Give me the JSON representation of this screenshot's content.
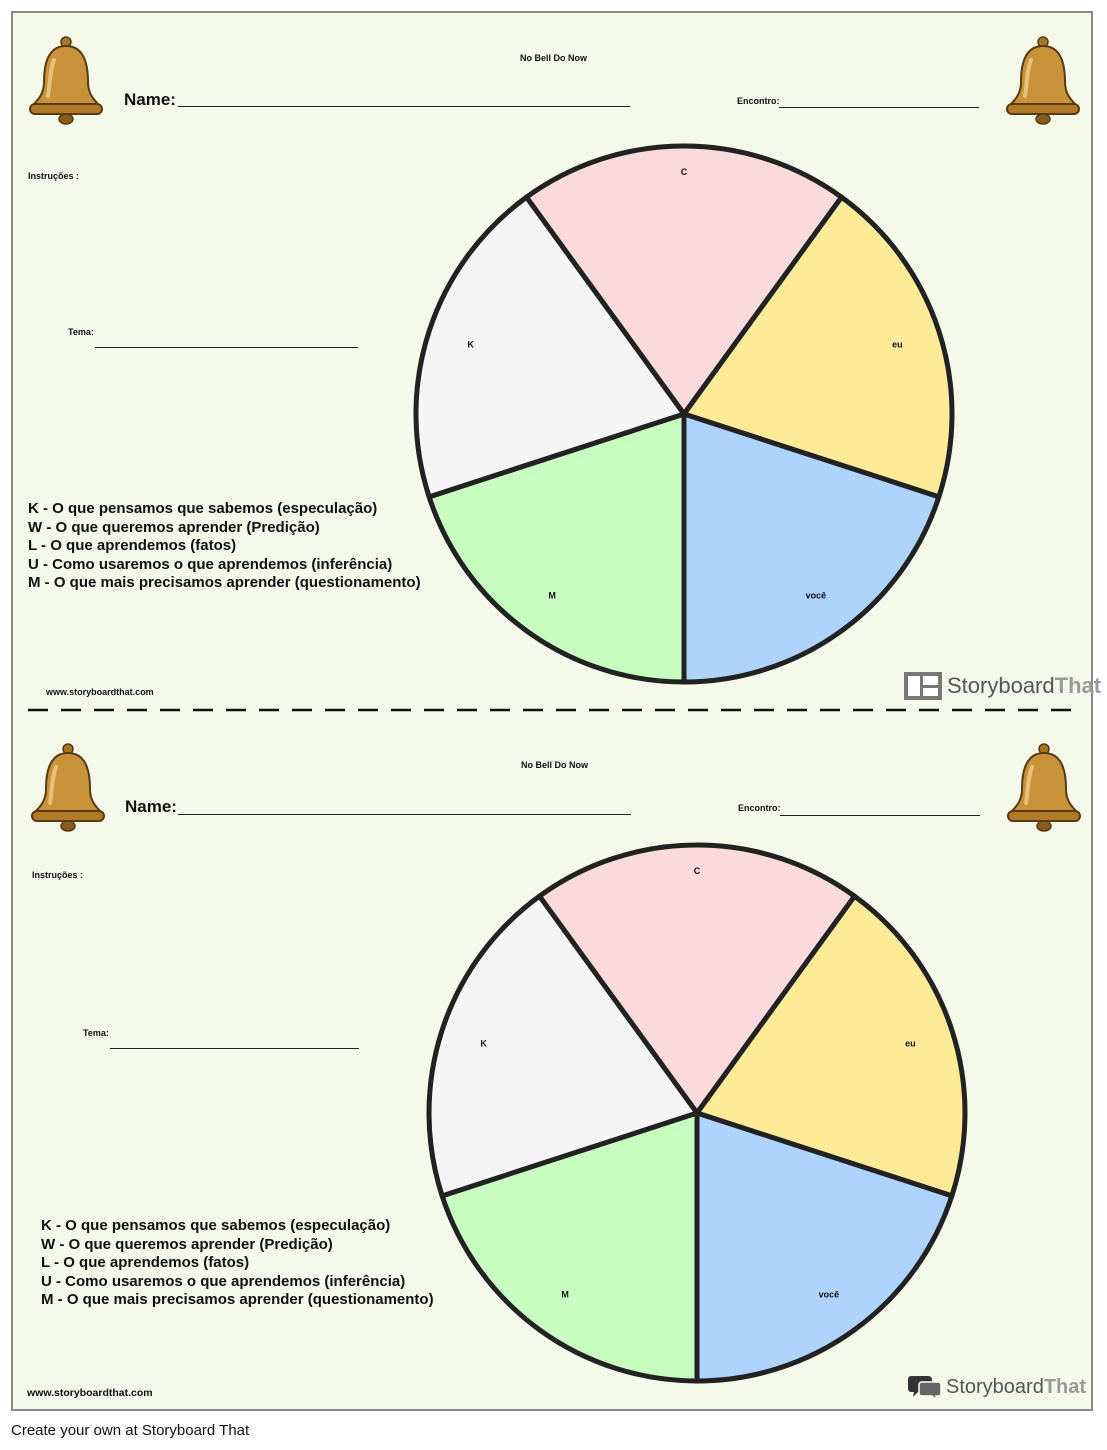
{
  "worksheet": {
    "title": "No Bell Do Now",
    "name_label": "Name:",
    "date_label": "Encontro:",
    "instructions_label": "Instruções :",
    "topic_label": "Tema:",
    "legend": [
      "K - O que pensamos que sabemos (especulação)",
      "W - O que queremos aprender (Predição)",
      "L - O que aprendemos (fatos)",
      "U - Como usaremos o que aprendemos (inferência)",
      "M - O que mais precisamos aprender (questionamento)"
    ],
    "wheel": [
      {
        "label": "C",
        "color": "#fadadb"
      },
      {
        "label": "eu",
        "color": "#fdeb98"
      },
      {
        "label": "você",
        "color": "#aed3fd"
      },
      {
        "label": "M",
        "color": "#c6ffbf"
      },
      {
        "label": "K",
        "color": "#f5f5f5"
      }
    ],
    "url": "www.storyboardthat.com"
  },
  "logo": {
    "word1": "Storyboard",
    "word2": "That"
  },
  "footer": "Create your own at Storyboard That",
  "colors": {
    "page_background": "#f4f9ea",
    "bell": "#c8923a",
    "outline": "#222222"
  },
  "icons": [
    "bell-icon",
    "storyboard-that-logo-icon"
  ]
}
